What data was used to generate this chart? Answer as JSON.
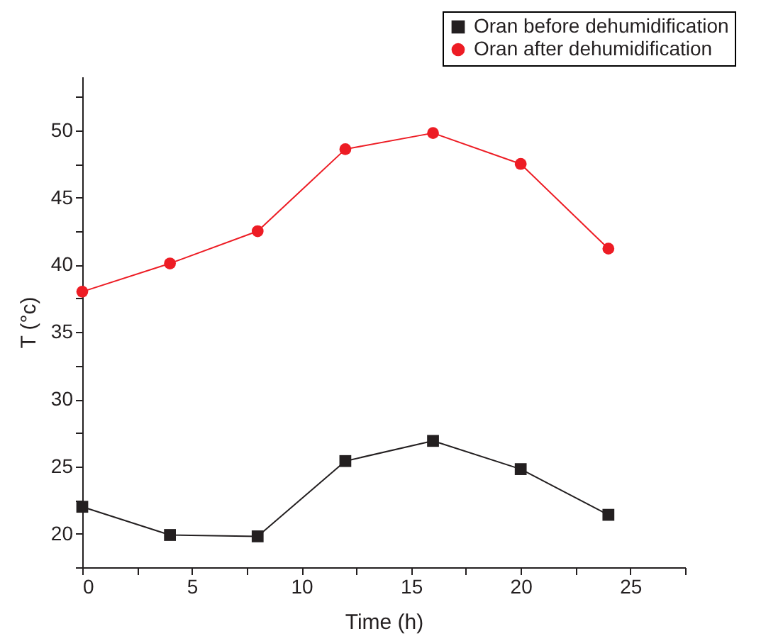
{
  "chart_data": {
    "type": "line",
    "xlabel": "Time (h)",
    "ylabel": "T (°c)",
    "x": [
      0,
      4,
      8,
      12,
      16,
      20,
      24
    ],
    "series": [
      {
        "name": "Oran before dehumidification",
        "color": "#231f20",
        "marker": "square",
        "values": [
          22.0,
          19.9,
          19.8,
          25.4,
          26.9,
          24.8,
          21.4
        ]
      },
      {
        "name": "Oran after dehumidification",
        "color": "#ed1c24",
        "marker": "circle",
        "values": [
          38.0,
          40.1,
          42.5,
          48.6,
          49.8,
          47.5,
          41.2
        ]
      }
    ],
    "xlim": [
      0,
      27.5
    ],
    "xticks": [
      0,
      {
        "value": 2.5,
        "label": null
      },
      5,
      {
        "value": 7.5,
        "label": null
      },
      10,
      {
        "value": 12.5,
        "label": null
      },
      15,
      {
        "value": 17.5,
        "label": null
      },
      20,
      {
        "value": 22.5,
        "label": null
      },
      25,
      {
        "value": 27.5,
        "label": null
      }
    ],
    "ylim": [
      17.5,
      54
    ],
    "yticks": [
      {
        "value": 17.5,
        "label": null
      },
      20,
      {
        "value": 22.5,
        "label": null
      },
      25,
      {
        "value": 27.5,
        "label": null
      },
      30,
      {
        "value": 32.5,
        "label": null
      },
      35,
      {
        "value": 37.5,
        "label": null
      },
      40,
      {
        "value": 42.5,
        "label": null
      },
      45,
      {
        "value": 47.5,
        "label": null
      },
      50,
      {
        "value": 52.5,
        "label": null
      }
    ],
    "grid": false,
    "legend": "top right",
    "line_style": "solid"
  }
}
